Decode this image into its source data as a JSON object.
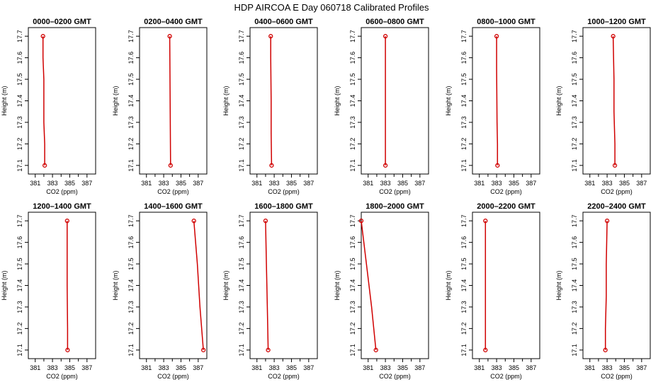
{
  "page_title": "HDP  AIRCOA E  Day 060718  Calibrated Profiles",
  "styles": {
    "line_color": "#d00000",
    "axis_color": "#000000"
  },
  "chart_data": [
    {
      "type": "line",
      "title": "0000–0200 GMT",
      "xlabel": "CO2 (ppm)",
      "ylabel": "Height (m)",
      "x_ticks": [
        "381",
        "383",
        "385",
        "387"
      ],
      "y_ticks": [
        "17.1",
        "17.2",
        "17.3",
        "17.4",
        "17.5",
        "17.6",
        "17.7"
      ],
      "xlim": [
        380.2,
        388
      ],
      "ylim": [
        17.06,
        17.74
      ],
      "x": [
        381.9,
        381.9,
        382.0,
        382.0,
        382.0,
        382.1,
        382.1
      ],
      "y": [
        17.7,
        17.6,
        17.5,
        17.4,
        17.3,
        17.2,
        17.1
      ],
      "markers": [
        [
          381.9,
          17.7
        ],
        [
          382.1,
          17.1
        ]
      ]
    },
    {
      "type": "line",
      "title": "0200–0400 GMT",
      "xlabel": "CO2 (ppm)",
      "ylabel": "Height (m)",
      "x_ticks": [
        "381",
        "383",
        "385",
        "387"
      ],
      "y_ticks": [
        "17.1",
        "17.2",
        "17.3",
        "17.4",
        "17.5",
        "17.6",
        "17.7"
      ],
      "xlim": [
        380.2,
        388
      ],
      "ylim": [
        17.06,
        17.74
      ],
      "x": [
        383.7,
        383.75,
        383.8
      ],
      "y": [
        17.7,
        17.4,
        17.1
      ],
      "markers": [
        [
          383.7,
          17.7
        ],
        [
          383.8,
          17.1
        ]
      ]
    },
    {
      "type": "line",
      "title": "0400–0600 GMT",
      "xlabel": "CO2 (ppm)",
      "ylabel": "Height (m)",
      "x_ticks": [
        "381",
        "383",
        "385",
        "387"
      ],
      "y_ticks": [
        "17.1",
        "17.2",
        "17.3",
        "17.4",
        "17.5",
        "17.6",
        "17.7"
      ],
      "xlim": [
        380.2,
        388
      ],
      "ylim": [
        17.06,
        17.74
      ],
      "x": [
        382.6,
        382.6,
        382.65,
        382.65,
        382.7
      ],
      "y": [
        17.7,
        17.6,
        17.4,
        17.25,
        17.1
      ],
      "markers": [
        [
          382.6,
          17.7
        ],
        [
          382.7,
          17.1
        ]
      ]
    },
    {
      "type": "line",
      "title": "0600–0800 GMT",
      "xlabel": "CO2 (ppm)",
      "ylabel": "Height (m)",
      "x_ticks": [
        "381",
        "383",
        "385",
        "387"
      ],
      "y_ticks": [
        "17.1",
        "17.2",
        "17.3",
        "17.4",
        "17.5",
        "17.6",
        "17.7"
      ],
      "xlim": [
        380.2,
        388
      ],
      "ylim": [
        17.06,
        17.74
      ],
      "x": [
        383.0,
        383.0
      ],
      "y": [
        17.7,
        17.1
      ],
      "markers": [
        [
          383.0,
          17.7
        ],
        [
          383.0,
          17.1
        ]
      ]
    },
    {
      "type": "line",
      "title": "0800–1000 GMT",
      "xlabel": "CO2 (ppm)",
      "ylabel": "Height (m)",
      "x_ticks": [
        "381",
        "383",
        "385",
        "387"
      ],
      "y_ticks": [
        "17.1",
        "17.2",
        "17.3",
        "17.4",
        "17.5",
        "17.6",
        "17.7"
      ],
      "xlim": [
        380.2,
        388
      ],
      "ylim": [
        17.06,
        17.74
      ],
      "x": [
        383.0,
        383.0,
        383.05,
        383.1,
        383.1
      ],
      "y": [
        17.7,
        17.55,
        17.3,
        17.2,
        17.1
      ],
      "markers": [
        [
          383.0,
          17.7
        ],
        [
          383.1,
          17.1
        ]
      ]
    },
    {
      "type": "line",
      "title": "1000–1200 GMT",
      "xlabel": "CO2 (ppm)",
      "ylabel": "Height (m)",
      "x_ticks": [
        "381",
        "383",
        "385",
        "387"
      ],
      "y_ticks": [
        "17.1",
        "17.2",
        "17.3",
        "17.4",
        "17.5",
        "17.6",
        "17.7"
      ],
      "xlim": [
        380.2,
        388
      ],
      "ylim": [
        17.06,
        17.74
      ],
      "x": [
        383.7,
        383.8,
        383.8,
        383.9,
        383.9
      ],
      "y": [
        17.7,
        17.5,
        17.35,
        17.2,
        17.1
      ],
      "markers": [
        [
          383.7,
          17.7
        ],
        [
          383.9,
          17.1
        ]
      ]
    },
    {
      "type": "line",
      "title": "1200–1400 GMT",
      "xlabel": "CO2 (ppm)",
      "ylabel": "Height (m)",
      "x_ticks": [
        "381",
        "383",
        "385",
        "387"
      ],
      "y_ticks": [
        "17.1",
        "17.2",
        "17.3",
        "17.4",
        "17.5",
        "17.6",
        "17.7"
      ],
      "xlim": [
        380.2,
        388
      ],
      "ylim": [
        17.06,
        17.74
      ],
      "x": [
        384.7,
        384.7,
        384.75,
        384.75
      ],
      "y": [
        17.7,
        17.4,
        17.2,
        17.1
      ],
      "markers": [
        [
          384.7,
          17.7
        ],
        [
          384.75,
          17.1
        ]
      ]
    },
    {
      "type": "line",
      "title": "1400–1600 GMT",
      "xlabel": "CO2 (ppm)",
      "ylabel": "Height (m)",
      "x_ticks": [
        "381",
        "383",
        "385",
        "387"
      ],
      "y_ticks": [
        "17.1",
        "17.2",
        "17.3",
        "17.4",
        "17.5",
        "17.6",
        "17.7"
      ],
      "xlim": [
        380.2,
        388
      ],
      "ylim": [
        17.06,
        17.74
      ],
      "x": [
        386.5,
        386.9,
        387.2,
        387.6
      ],
      "y": [
        17.7,
        17.5,
        17.3,
        17.1
      ],
      "markers": [
        [
          386.5,
          17.7
        ],
        [
          387.6,
          17.1
        ]
      ]
    },
    {
      "type": "line",
      "title": "1600–1800 GMT",
      "xlabel": "CO2 (ppm)",
      "ylabel": "Height (m)",
      "x_ticks": [
        "381",
        "383",
        "385",
        "387"
      ],
      "y_ticks": [
        "17.1",
        "17.2",
        "17.3",
        "17.4",
        "17.5",
        "17.6",
        "17.7"
      ],
      "xlim": [
        380.2,
        388
      ],
      "ylim": [
        17.06,
        17.74
      ],
      "x": [
        382.0,
        382.1,
        382.2,
        382.3
      ],
      "y": [
        17.7,
        17.5,
        17.3,
        17.1
      ],
      "markers": [
        [
          382.0,
          17.7
        ],
        [
          382.3,
          17.1
        ]
      ]
    },
    {
      "type": "line",
      "title": "1800–2000 GMT",
      "xlabel": "CO2 (ppm)",
      "ylabel": "Height (m)",
      "x_ticks": [
        "381",
        "383",
        "385",
        "387"
      ],
      "y_ticks": [
        "17.1",
        "17.2",
        "17.3",
        "17.4",
        "17.5",
        "17.6",
        "17.7"
      ],
      "xlim": [
        380.2,
        388
      ],
      "ylim": [
        17.06,
        17.74
      ],
      "x": [
        380.2,
        380.8,
        381.4,
        381.9
      ],
      "y": [
        17.7,
        17.5,
        17.3,
        17.1
      ],
      "markers": [
        [
          380.2,
          17.7
        ],
        [
          381.9,
          17.1
        ]
      ]
    },
    {
      "type": "line",
      "title": "2000–2200 GMT",
      "xlabel": "CO2 (ppm)",
      "ylabel": "Height (m)",
      "x_ticks": [
        "381",
        "383",
        "385",
        "387"
      ],
      "y_ticks": [
        "17.1",
        "17.2",
        "17.3",
        "17.4",
        "17.5",
        "17.6",
        "17.7"
      ],
      "xlim": [
        380.2,
        388
      ],
      "ylim": [
        17.06,
        17.74
      ],
      "x": [
        381.7,
        381.7,
        381.7
      ],
      "y": [
        17.7,
        17.55,
        17.1
      ],
      "markers": [
        [
          381.7,
          17.7
        ],
        [
          381.7,
          17.1
        ]
      ]
    },
    {
      "type": "line",
      "title": "2200–2400 GMT",
      "xlabel": "CO2 (ppm)",
      "ylabel": "Height (m)",
      "x_ticks": [
        "381",
        "383",
        "385",
        "387"
      ],
      "y_ticks": [
        "17.1",
        "17.2",
        "17.3",
        "17.4",
        "17.5",
        "17.6",
        "17.7"
      ],
      "xlim": [
        380.2,
        388
      ],
      "ylim": [
        17.06,
        17.74
      ],
      "x": [
        383.0,
        382.9,
        382.9,
        382.8,
        382.8
      ],
      "y": [
        17.7,
        17.5,
        17.35,
        17.2,
        17.1
      ],
      "markers": [
        [
          383.0,
          17.7
        ],
        [
          382.8,
          17.1
        ]
      ]
    }
  ]
}
